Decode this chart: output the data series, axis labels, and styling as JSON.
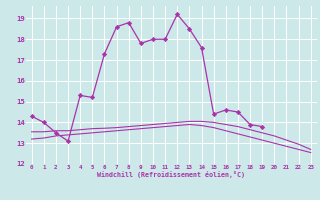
{
  "background_color": "#cce8e8",
  "grid_color": "#ffffff",
  "line_color": "#aa33aa",
  "xlabel": "Windchill (Refroidissement éolien,°C)",
  "xlim": [
    -0.5,
    23.5
  ],
  "ylim": [
    12,
    19.6
  ],
  "yticks": [
    12,
    13,
    14,
    15,
    16,
    17,
    18,
    19
  ],
  "xticks": [
    0,
    1,
    2,
    3,
    4,
    5,
    6,
    7,
    8,
    9,
    10,
    11,
    12,
    13,
    14,
    15,
    16,
    17,
    18,
    19,
    20,
    21,
    22,
    23
  ],
  "hours": [
    0,
    1,
    2,
    3,
    4,
    5,
    6,
    7,
    8,
    9,
    10,
    11,
    12,
    13,
    14,
    15,
    16,
    17,
    18,
    19,
    20,
    21,
    22,
    23
  ],
  "line1_x": [
    0,
    1,
    2,
    3,
    4,
    5,
    6,
    7,
    8,
    9,
    10,
    11,
    12,
    13,
    14,
    15,
    16,
    17,
    18,
    19
  ],
  "line1_y": [
    14.3,
    14.0,
    13.5,
    13.1,
    15.3,
    15.2,
    17.3,
    18.6,
    18.8,
    17.8,
    18.0,
    18.0,
    19.2,
    18.5,
    17.6,
    14.4,
    14.6,
    14.5,
    13.9,
    13.8
  ],
  "line2": [
    13.2,
    13.25,
    13.35,
    13.4,
    13.45,
    13.5,
    13.55,
    13.6,
    13.65,
    13.7,
    13.75,
    13.8,
    13.85,
    13.9,
    13.85,
    13.75,
    13.6,
    13.45,
    13.3,
    13.15,
    13.0,
    12.85,
    12.7,
    12.55
  ],
  "line3": [
    13.55,
    13.55,
    13.6,
    13.6,
    13.65,
    13.7,
    13.72,
    13.75,
    13.8,
    13.85,
    13.9,
    13.95,
    14.0,
    14.05,
    14.05,
    14.0,
    13.9,
    13.8,
    13.65,
    13.5,
    13.35,
    13.15,
    12.95,
    12.7
  ]
}
